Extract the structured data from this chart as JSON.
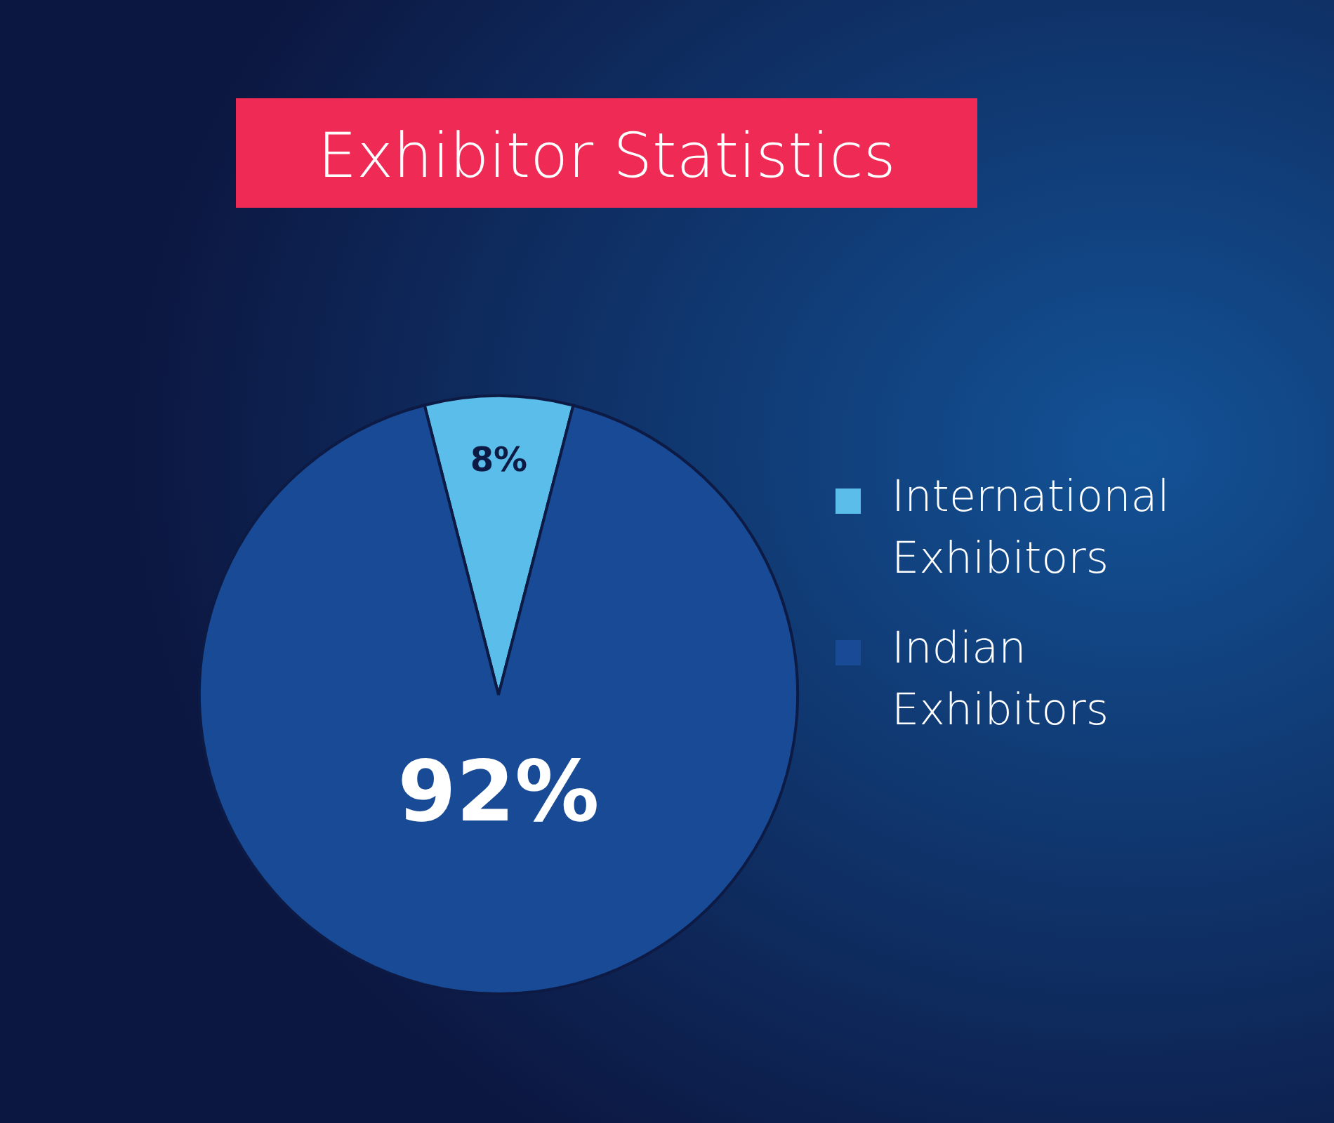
{
  "chart_data": {
    "type": "pie",
    "title": "Exhibitor Statistics",
    "categories": [
      "International Exhibitors",
      "Indian Exhibitors"
    ],
    "values": [
      8,
      92
    ],
    "colors": [
      "#5bbde9",
      "#184a96"
    ],
    "value_labels": [
      "8%",
      "92%"
    ],
    "legend": "right"
  }
}
